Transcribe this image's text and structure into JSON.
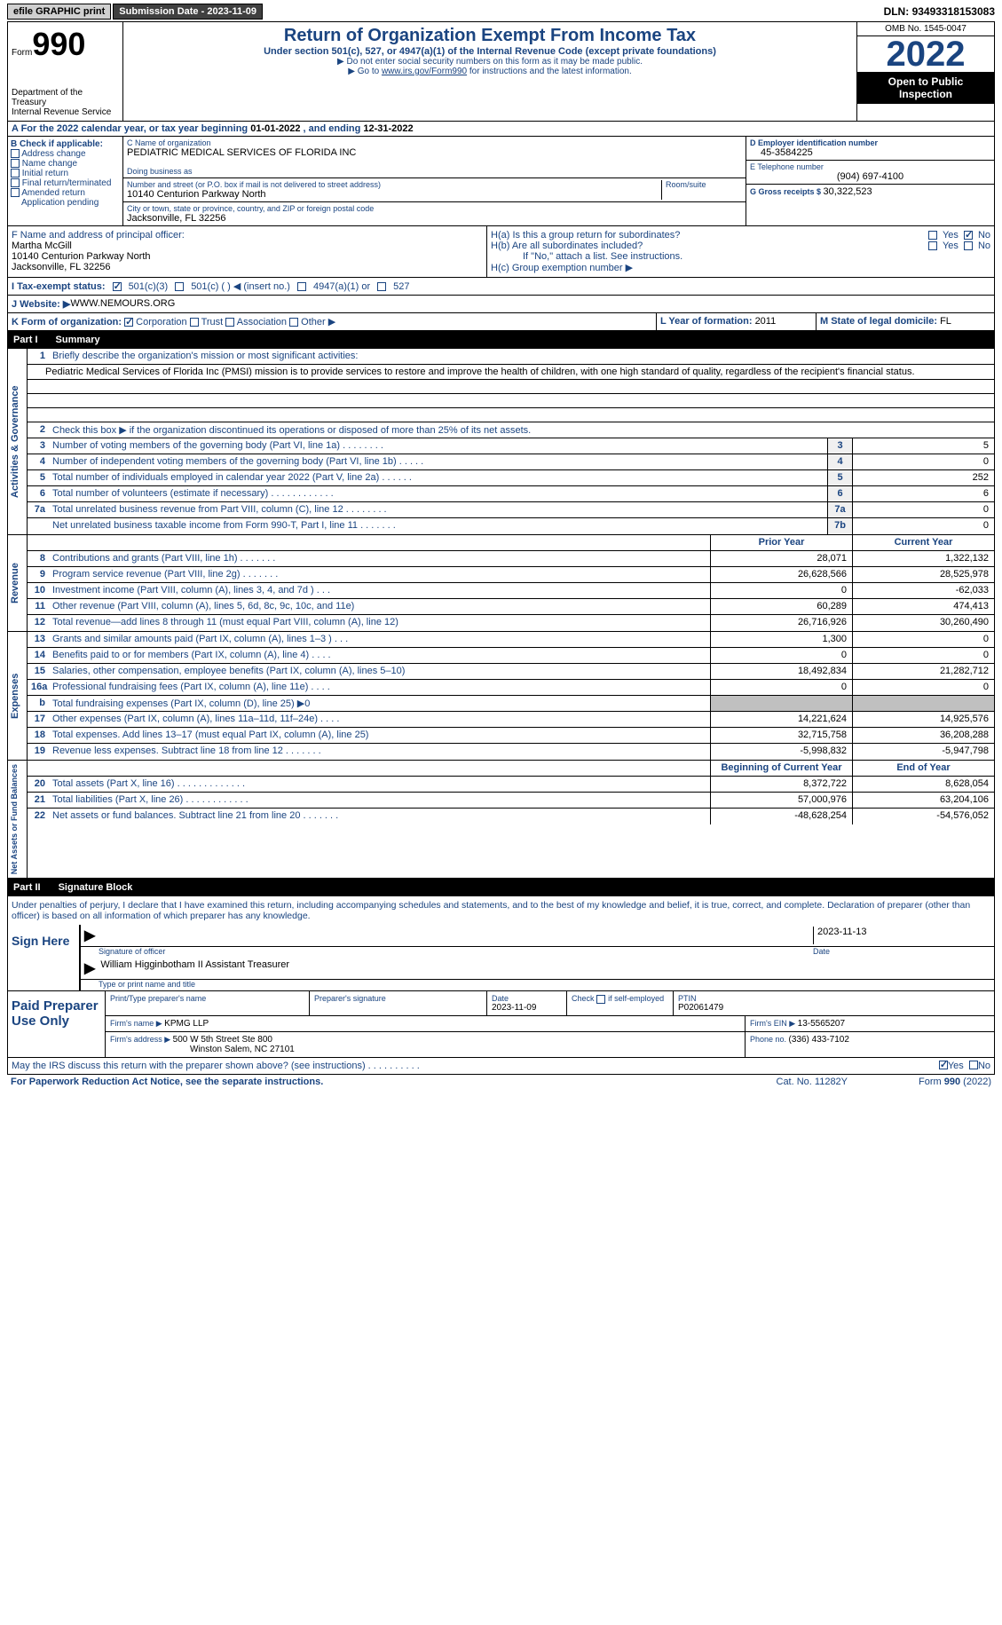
{
  "topbar": {
    "efile": "efile GRAPHIC print",
    "sub_label": "Submission Date - ",
    "sub_date": "2023-11-09",
    "dln_label": "DLN: ",
    "dln": "93493318153083"
  },
  "header": {
    "form_word": "Form",
    "form_num": "990",
    "dept": "Department of the Treasury\nInternal Revenue Service",
    "title": "Return of Organization Exempt From Income Tax",
    "sub": "Under section 501(c), 527, or 4947(a)(1) of the Internal Revenue Code (except private foundations)",
    "inst1": "▶ Do not enter social security numbers on this form as it may be made public.",
    "inst2_a": "▶ Go to ",
    "inst2_link": "www.irs.gov/Form990",
    "inst2_b": " for instructions and the latest information.",
    "omb": "OMB No. 1545-0047",
    "year": "2022",
    "inspect": "Open to Public Inspection"
  },
  "sectionA": {
    "text_a": "A  For the 2022 calendar year, or tax year beginning ",
    "begin": "01-01-2022",
    "text_b": "   , and ending ",
    "end": "12-31-2022"
  },
  "colB": {
    "label": "B Check if applicable:",
    "items": [
      "Address change",
      "Name change",
      "Initial return",
      "Final return/terminated",
      "Amended return",
      "Application pending"
    ]
  },
  "colC": {
    "name_label": "C Name of organization",
    "name": "PEDIATRIC MEDICAL SERVICES OF FLORIDA INC",
    "dba_label": "Doing business as",
    "dba": "",
    "street_label": "Number and street (or P.O. box if mail is not delivered to street address)",
    "room_label": "Room/suite",
    "street": "10140 Centurion Parkway North",
    "city_label": "City or town, state or province, country, and ZIP or foreign postal code",
    "city": "Jacksonville, FL  32256"
  },
  "colD": {
    "ein_label": "D Employer identification number",
    "ein": "45-3584225",
    "tel_label": "E Telephone number",
    "tel": "(904) 697-4100",
    "gross_label": "G Gross receipts $ ",
    "gross": "30,322,523"
  },
  "rowF": {
    "label": "F  Name and address of principal officer:",
    "name": "Martha McGill",
    "addr1": "10140 Centurion Parkway North",
    "addr2": "Jacksonville, FL  32256"
  },
  "rowH": {
    "ha": "H(a)  Is this a group return for subordinates?",
    "hb": "H(b)  Are all subordinates included?",
    "hb_note": "If \"No,\" attach a list. See instructions.",
    "hc": "H(c)  Group exemption number ▶",
    "yes": "Yes",
    "no": "No"
  },
  "rowI": {
    "label": "I    Tax-exempt status:",
    "o1": "501(c)(3)",
    "o2": "501(c) (    ) ◀ (insert no.)",
    "o3": "4947(a)(1) or",
    "o4": "527"
  },
  "rowJ": {
    "label": "J   Website: ▶  ",
    "val": "WWW.NEMOURS.ORG"
  },
  "rowK": {
    "label": "K Form of organization:",
    "o1": "Corporation",
    "o2": "Trust",
    "o3": "Association",
    "o4": "Other ▶"
  },
  "rowL": {
    "label": "L Year of formation: ",
    "val": "2011"
  },
  "rowM": {
    "label": "M State of legal domicile: ",
    "val": "FL"
  },
  "part1": {
    "num": "Part I",
    "title": "Summary"
  },
  "summary": {
    "q1": "Briefly describe the organization's mission or most significant activities:",
    "mission": "Pediatric Medical Services of Florida Inc (PMSI) mission is to provide services to restore and improve the health of children, with one high standard of quality, regardless of the recipient's financial status.",
    "q2": "Check this box ▶       if the organization discontinued its operations or disposed of more than 25% of its net assets.",
    "rows_ag": [
      {
        "n": "3",
        "d": "Number of voting members of the governing body (Part VI, line 1a)   .    .    .    .    .    .    .    .",
        "b": "3",
        "v": "5"
      },
      {
        "n": "4",
        "d": "Number of independent voting members of the governing body (Part VI, line 1b)   .    .    .    .    .",
        "b": "4",
        "v": "0"
      },
      {
        "n": "5",
        "d": "Total number of individuals employed in calendar year 2022 (Part V, line 2a)   .    .    .    .    .    .",
        "b": "5",
        "v": "252"
      },
      {
        "n": "6",
        "d": "Total number of volunteers (estimate if necessary)     .    .    .    .    .    .    .    .    .    .    .    .",
        "b": "6",
        "v": "6"
      },
      {
        "n": "7a",
        "d": "Total unrelated business revenue from Part VIII, column (C), line 12    .    .    .    .    .    .    .    .",
        "b": "7a",
        "v": "0"
      },
      {
        "n": "",
        "d": "Net unrelated business taxable income from Form 990-T, Part I, line 11   .    .    .    .    .    .    .",
        "b": "7b",
        "v": "0"
      }
    ],
    "hdr_prior": "Prior Year",
    "hdr_curr": "Current Year",
    "rows_rev": [
      {
        "n": "8",
        "d": "Contributions and grants (Part VIII, line 1h)    .    .    .    .    .    .    .",
        "p": "28,071",
        "c": "1,322,132"
      },
      {
        "n": "9",
        "d": "Program service revenue (Part VIII, line 2g)    .    .    .    .    .    .    .",
        "p": "26,628,566",
        "c": "28,525,978"
      },
      {
        "n": "10",
        "d": "Investment income (Part VIII, column (A), lines 3, 4, and 7d )    .    .    .",
        "p": "0",
        "c": "-62,033"
      },
      {
        "n": "11",
        "d": "Other revenue (Part VIII, column (A), lines 5, 6d, 8c, 9c, 10c, and 11e)",
        "p": "60,289",
        "c": "474,413"
      },
      {
        "n": "12",
        "d": "Total revenue—add lines 8 through 11 (must equal Part VIII, column (A), line 12)",
        "p": "26,716,926",
        "c": "30,260,490"
      }
    ],
    "rows_exp": [
      {
        "n": "13",
        "d": "Grants and similar amounts paid (Part IX, column (A), lines 1–3 )   .    .    .",
        "p": "1,300",
        "c": "0"
      },
      {
        "n": "14",
        "d": "Benefits paid to or for members (Part IX, column (A), line 4)   .    .    .    .",
        "p": "0",
        "c": "0"
      },
      {
        "n": "15",
        "d": "Salaries, other compensation, employee benefits (Part IX, column (A), lines 5–10)",
        "p": "18,492,834",
        "c": "21,282,712"
      },
      {
        "n": "16a",
        "d": "Professional fundraising fees (Part IX, column (A), line 11e)    .    .    .    .",
        "p": "0",
        "c": "0"
      },
      {
        "n": "b",
        "d": "Total fundraising expenses (Part IX, column (D), line 25) ▶0",
        "p": "",
        "c": "",
        "gray": true
      },
      {
        "n": "17",
        "d": "Other expenses (Part IX, column (A), lines 11a–11d, 11f–24e)    .    .    .    .",
        "p": "14,221,624",
        "c": "14,925,576"
      },
      {
        "n": "18",
        "d": "Total expenses. Add lines 13–17 (must equal Part IX, column (A), line 25)",
        "p": "32,715,758",
        "c": "36,208,288"
      },
      {
        "n": "19",
        "d": "Revenue less expenses. Subtract line 18 from line 12  .    .    .    .    .    .    .",
        "p": "-5,998,832",
        "c": "-5,947,798"
      }
    ],
    "hdr_begin": "Beginning of Current Year",
    "hdr_end": "End of Year",
    "rows_net": [
      {
        "n": "20",
        "d": "Total assets (Part X, line 16)  .    .    .    .    .    .    .    .    .    .    .    .    .",
        "p": "8,372,722",
        "c": "8,628,054"
      },
      {
        "n": "21",
        "d": "Total liabilities (Part X, line 26)  .    .    .    .    .    .    .    .    .    .    .    .",
        "p": "57,000,976",
        "c": "63,204,106"
      },
      {
        "n": "22",
        "d": "Net assets or fund balances. Subtract line 21 from line 20  .    .    .    .    .    .    .",
        "p": "-48,628,254",
        "c": "-54,576,052"
      }
    ],
    "vl_ag": "Activities & Governance",
    "vl_rev": "Revenue",
    "vl_exp": "Expenses",
    "vl_net": "Net Assets or Fund Balances"
  },
  "part2": {
    "num": "Part II",
    "title": "Signature Block"
  },
  "sig": {
    "decl": "Under penalties of perjury, I declare that I have examined this return, including accompanying schedules and statements, and to the best of my knowledge and belief, it is true, correct, and complete. Declaration of preparer (other than officer) is based on all information of which preparer has any knowledge.",
    "sign_here": "Sign Here",
    "sig_label": "Signature of officer",
    "date_label": "Date",
    "sig_date": "2023-11-13",
    "name_title": "William Higginbotham II  Assistant Treasurer",
    "name_label": "Type or print name and title"
  },
  "prep": {
    "title": "Paid Preparer Use Only",
    "h1": "Print/Type preparer's name",
    "h2": "Preparer's signature",
    "h3": "Date",
    "date": "2023-11-09",
    "h4a": "Check",
    "h4b": "if self-employed",
    "h5": "PTIN",
    "ptin": "P02061479",
    "firm_name_l": "Firm's name    ▶ ",
    "firm_name": "KPMG LLP",
    "firm_ein_l": "Firm's EIN ▶ ",
    "firm_ein": "13-5565207",
    "firm_addr_l": "Firm's address ▶ ",
    "firm_addr1": "500 W 5th Street Ste 800",
    "firm_addr2": "Winston Salem, NC  27101",
    "phone_l": "Phone no. ",
    "phone": "(336) 433-7102"
  },
  "footer": {
    "discuss": "May the IRS discuss this return with the preparer shown above? (see instructions)    .    .    .    .    .    .    .    .    .    .",
    "yes": "Yes",
    "no": "No",
    "paperwork": "For Paperwork Reduction Act Notice, see the separate instructions.",
    "cat": "Cat. No. 11282Y",
    "form": "Form 990 (2022)"
  }
}
